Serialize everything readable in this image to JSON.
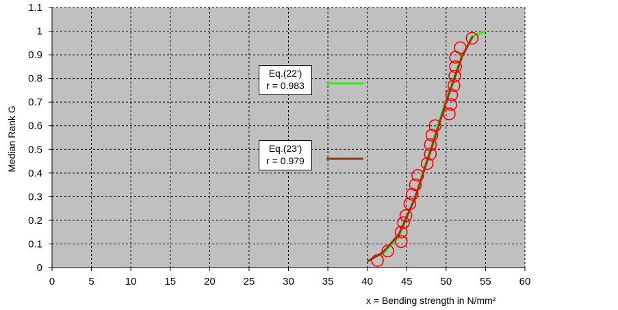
{
  "chart_data": {
    "type": "scatter",
    "ylabel": "Median Rank G",
    "xlabel": "x = Bending strength in N/mm²",
    "xlim": [
      0,
      60
    ],
    "ylim": [
      0,
      1.1
    ],
    "x_ticks": [
      "0",
      "5",
      "10",
      "15",
      "20",
      "25",
      "30",
      "35",
      "40",
      "45",
      "50",
      "55",
      "60"
    ],
    "y_ticks": [
      "0",
      "0.1",
      "0.2",
      "0.3",
      "0.4",
      "0.5",
      "0.6",
      "0.7",
      "0.8",
      "0.9",
      "1",
      "1.1"
    ],
    "grid": true,
    "plot_background": "#c0c0c0",
    "scatter": {
      "marker": "open-circle",
      "color": "#ff0000",
      "points": [
        [
          41.3,
          0.03
        ],
        [
          42.6,
          0.07
        ],
        [
          44.3,
          0.11
        ],
        [
          44.3,
          0.15
        ],
        [
          44.6,
          0.19
        ],
        [
          44.9,
          0.22
        ],
        [
          45.4,
          0.27
        ],
        [
          45.7,
          0.31
        ],
        [
          46.1,
          0.35
        ],
        [
          46.4,
          0.39
        ],
        [
          47.6,
          0.44
        ],
        [
          48.0,
          0.48
        ],
        [
          48.0,
          0.52
        ],
        [
          48.2,
          0.56
        ],
        [
          48.6,
          0.6
        ],
        [
          50.4,
          0.65
        ],
        [
          50.6,
          0.69
        ],
        [
          50.7,
          0.73
        ],
        [
          51.0,
          0.77
        ],
        [
          51.1,
          0.81
        ],
        [
          51.2,
          0.85
        ],
        [
          51.2,
          0.89
        ],
        [
          51.8,
          0.93
        ],
        [
          53.3,
          0.97
        ]
      ]
    },
    "series": [
      {
        "color": "#33ee11",
        "values": [
          [
            40.0,
            0.028
          ],
          [
            42.0,
            0.06
          ],
          [
            44.0,
            0.13
          ],
          [
            46.0,
            0.29
          ],
          [
            48.0,
            0.5
          ],
          [
            50.0,
            0.71
          ],
          [
            52.0,
            0.9
          ],
          [
            53.5,
            0.98
          ],
          [
            55.0,
            1.0
          ]
        ]
      },
      {
        "color": "#8b3a0f",
        "values": [
          [
            40.0,
            0.025
          ],
          [
            42.0,
            0.065
          ],
          [
            44.0,
            0.14
          ],
          [
            46.0,
            0.29
          ],
          [
            48.0,
            0.49
          ],
          [
            50.0,
            0.7
          ],
          [
            52.0,
            0.89
          ],
          [
            53.4,
            0.98
          ]
        ]
      }
    ],
    "legend": [
      {
        "label_line1": "Eq.(22')",
        "label_line2": "r = 0.983",
        "color": "#33ee11"
      },
      {
        "label_line1": "Eq.(23')",
        "label_line2": "r = 0.979",
        "color": "#8b3a0f"
      }
    ]
  }
}
